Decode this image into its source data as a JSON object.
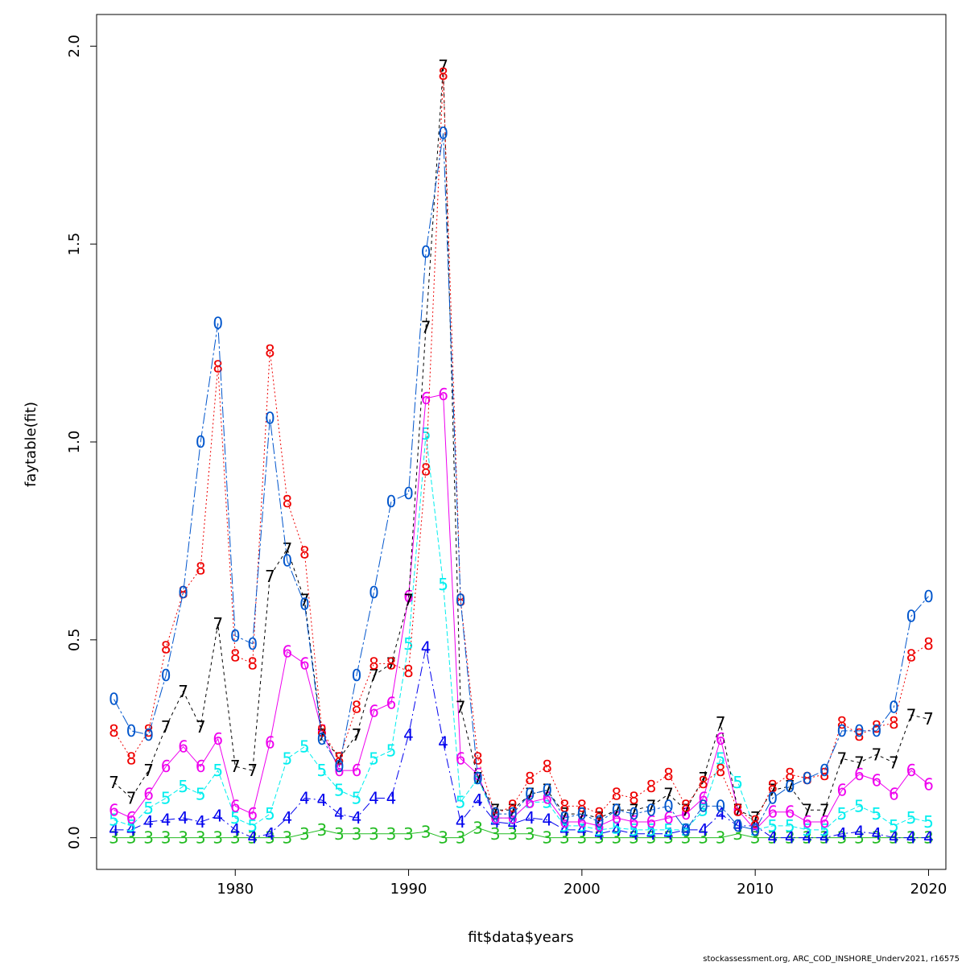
{
  "chart_data": {
    "type": "line",
    "title": "",
    "xlabel": "fit$data$years",
    "ylabel": "faytable(fit)",
    "xlim": [
      1972,
      2021
    ],
    "ylim": [
      -0.08,
      2.08
    ],
    "x_ticks": [
      1980,
      1990,
      2000,
      2010,
      2020
    ],
    "y_ticks": [
      0.0,
      0.5,
      1.0,
      1.5,
      2.0
    ],
    "y_tick_labels": [
      "0.0",
      "0.5",
      "1.0",
      "1.5",
      "2.0"
    ],
    "grid": false,
    "legend": "none",
    "x": [
      1973,
      1974,
      1975,
      1976,
      1977,
      1978,
      1979,
      1980,
      1981,
      1982,
      1983,
      1984,
      1985,
      1986,
      1987,
      1988,
      1989,
      1990,
      1991,
      1992,
      1993,
      1994,
      1995,
      1996,
      1997,
      1998,
      1999,
      2000,
      2001,
      2002,
      2003,
      2004,
      2005,
      2006,
      2007,
      2008,
      2009,
      2010,
      2011,
      2012,
      2013,
      2014,
      2015,
      2016,
      2017,
      2018,
      2019,
      2020
    ],
    "series": [
      {
        "symbol": "3",
        "color": "#22bb22",
        "dash": "",
        "values": [
          0.0,
          0.0,
          0.0,
          0.0,
          0.0,
          0.0,
          0.0,
          0.0,
          0.0,
          0.0,
          0.0,
          0.01,
          0.02,
          0.01,
          0.01,
          0.01,
          0.01,
          0.01,
          0.015,
          0.0,
          0.0,
          0.025,
          0.01,
          0.01,
          0.01,
          0.0,
          0.0,
          0.0,
          0.0,
          0.0,
          0.0,
          0.0,
          0.0,
          0.0,
          0.0,
          0.0,
          0.01,
          0.0,
          0.0,
          0.0,
          0.0,
          0.0,
          0.0,
          0.0,
          0.0,
          0.0,
          0.0,
          0.0
        ]
      },
      {
        "symbol": "4",
        "color": "#0000ee",
        "dash": "12,4,2,4",
        "values": [
          0.02,
          0.02,
          0.04,
          0.045,
          0.05,
          0.04,
          0.055,
          0.02,
          0.0,
          0.01,
          0.05,
          0.1,
          0.095,
          0.06,
          0.05,
          0.1,
          0.1,
          0.26,
          0.48,
          0.24,
          0.04,
          0.095,
          0.04,
          0.035,
          0.05,
          0.045,
          0.02,
          0.02,
          0.01,
          0.02,
          0.01,
          0.01,
          0.01,
          0.02,
          0.02,
          0.06,
          0.03,
          0.03,
          0.0,
          0.0,
          0.0,
          0.0,
          0.01,
          0.015,
          0.01,
          0.0,
          0.0,
          0.0
        ]
      },
      {
        "symbol": "5",
        "color": "#00eeee",
        "dash": "6,3",
        "values": [
          0.045,
          0.03,
          0.075,
          0.1,
          0.13,
          0.11,
          0.17,
          0.05,
          0.03,
          0.06,
          0.2,
          0.23,
          0.17,
          0.12,
          0.1,
          0.2,
          0.22,
          0.49,
          1.02,
          0.64,
          0.09,
          0.15,
          0.05,
          0.05,
          0.09,
          0.09,
          0.03,
          0.03,
          0.02,
          0.025,
          0.02,
          0.02,
          0.02,
          0.02,
          0.07,
          0.2,
          0.14,
          0.02,
          0.03,
          0.03,
          0.02,
          0.02,
          0.06,
          0.08,
          0.06,
          0.03,
          0.05,
          0.04
        ]
      },
      {
        "symbol": "6",
        "color": "#ee00ee",
        "dash": "",
        "values": [
          0.07,
          0.05,
          0.11,
          0.18,
          0.23,
          0.18,
          0.25,
          0.08,
          0.06,
          0.24,
          0.47,
          0.44,
          0.27,
          0.17,
          0.17,
          0.32,
          0.34,
          0.61,
          1.11,
          1.12,
          0.2,
          0.16,
          0.05,
          0.05,
          0.09,
          0.1,
          0.04,
          0.04,
          0.03,
          0.05,
          0.04,
          0.04,
          0.05,
          0.06,
          0.1,
          0.25,
          0.07,
          0.02,
          0.065,
          0.065,
          0.04,
          0.04,
          0.12,
          0.16,
          0.145,
          0.11,
          0.17,
          0.135
        ]
      },
      {
        "symbol": "7",
        "color": "#000000",
        "dash": "4,4",
        "values": [
          0.14,
          0.1,
          0.17,
          0.28,
          0.37,
          0.28,
          0.54,
          0.18,
          0.17,
          0.66,
          0.73,
          0.6,
          0.26,
          0.2,
          0.26,
          0.41,
          0.44,
          0.6,
          1.29,
          1.95,
          0.33,
          0.15,
          0.07,
          0.07,
          0.11,
          0.12,
          0.06,
          0.06,
          0.05,
          0.07,
          0.07,
          0.08,
          0.11,
          0.07,
          0.15,
          0.29,
          0.07,
          0.05,
          0.12,
          0.13,
          0.07,
          0.07,
          0.2,
          0.19,
          0.21,
          0.19,
          0.31,
          0.3
        ]
      },
      {
        "symbol": "8",
        "color": "#ee0000",
        "dash": "2,3",
        "values": [
          0.27,
          0.2,
          0.27,
          0.48,
          0.62,
          0.68,
          1.19,
          0.46,
          0.44,
          1.23,
          0.85,
          0.72,
          0.27,
          0.2,
          0.33,
          0.44,
          0.44,
          0.42,
          0.93,
          1.93,
          0.6,
          0.2,
          0.06,
          0.08,
          0.15,
          0.18,
          0.08,
          0.08,
          0.06,
          0.11,
          0.1,
          0.13,
          0.16,
          0.08,
          0.14,
          0.17,
          0.07,
          0.04,
          0.13,
          0.16,
          0.15,
          0.16,
          0.29,
          0.26,
          0.28,
          0.29,
          0.46,
          0.49
        ]
      },
      {
        "symbol": "0",
        "color": "#0055cc",
        "dash": "14,3,3,3",
        "values": [
          0.35,
          0.27,
          0.26,
          0.41,
          0.62,
          1.0,
          1.3,
          0.51,
          0.49,
          1.06,
          0.7,
          0.59,
          0.25,
          0.18,
          0.41,
          0.62,
          0.85,
          0.87,
          1.48,
          1.78,
          0.6,
          0.15,
          0.06,
          0.06,
          0.11,
          0.12,
          0.05,
          0.06,
          0.04,
          0.07,
          0.06,
          0.07,
          0.08,
          0.02,
          0.08,
          0.08,
          0.03,
          0.02,
          0.1,
          0.13,
          0.15,
          0.17,
          0.27,
          0.27,
          0.27,
          0.33,
          0.56,
          0.61
        ]
      }
    ]
  },
  "footer": "stockassessment.org, ARC_COD_INSHORE_Underv2021, r16575"
}
